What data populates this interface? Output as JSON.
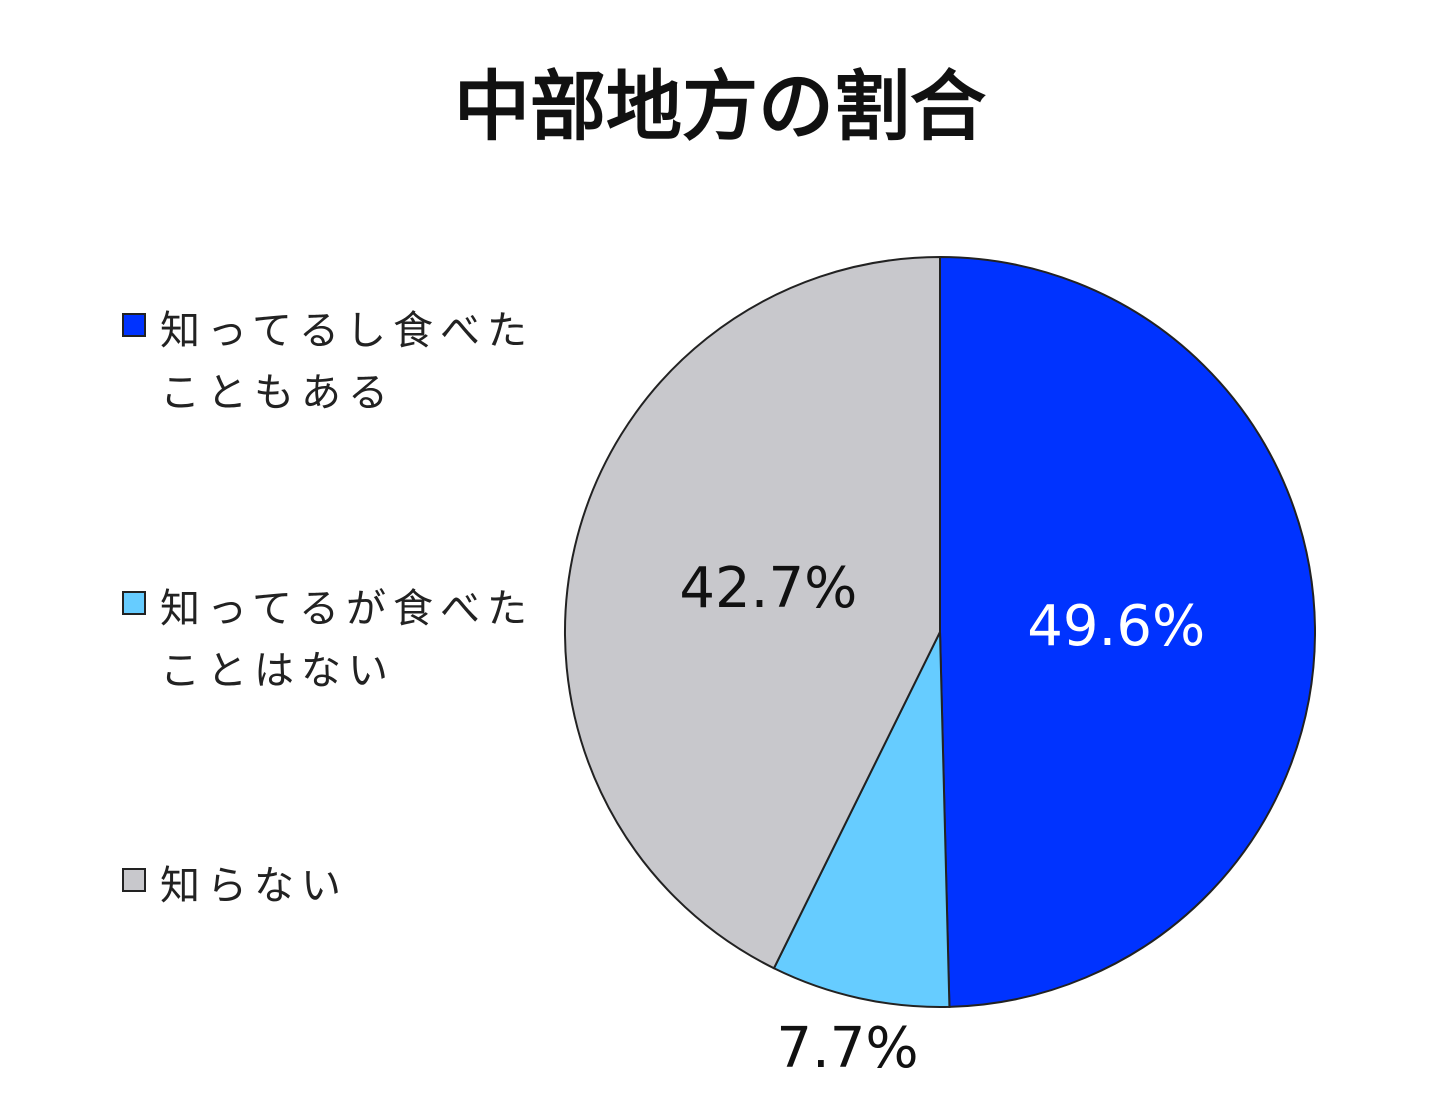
{
  "chart_data": {
    "type": "pie",
    "title": "中部地方の割合",
    "categories": [
      "知ってるし食べたこともある",
      "知ってるが食べたことはない",
      "知らない"
    ],
    "values": [
      49.6,
      7.7,
      42.7
    ],
    "value_labels": [
      "49.6%",
      "7.7%",
      "42.7%"
    ],
    "colors": [
      "#0033ff",
      "#66ccff",
      "#c8c8cc"
    ],
    "label_colors": [
      "#ffffff",
      "#111111",
      "#111111"
    ],
    "legend": "left"
  }
}
